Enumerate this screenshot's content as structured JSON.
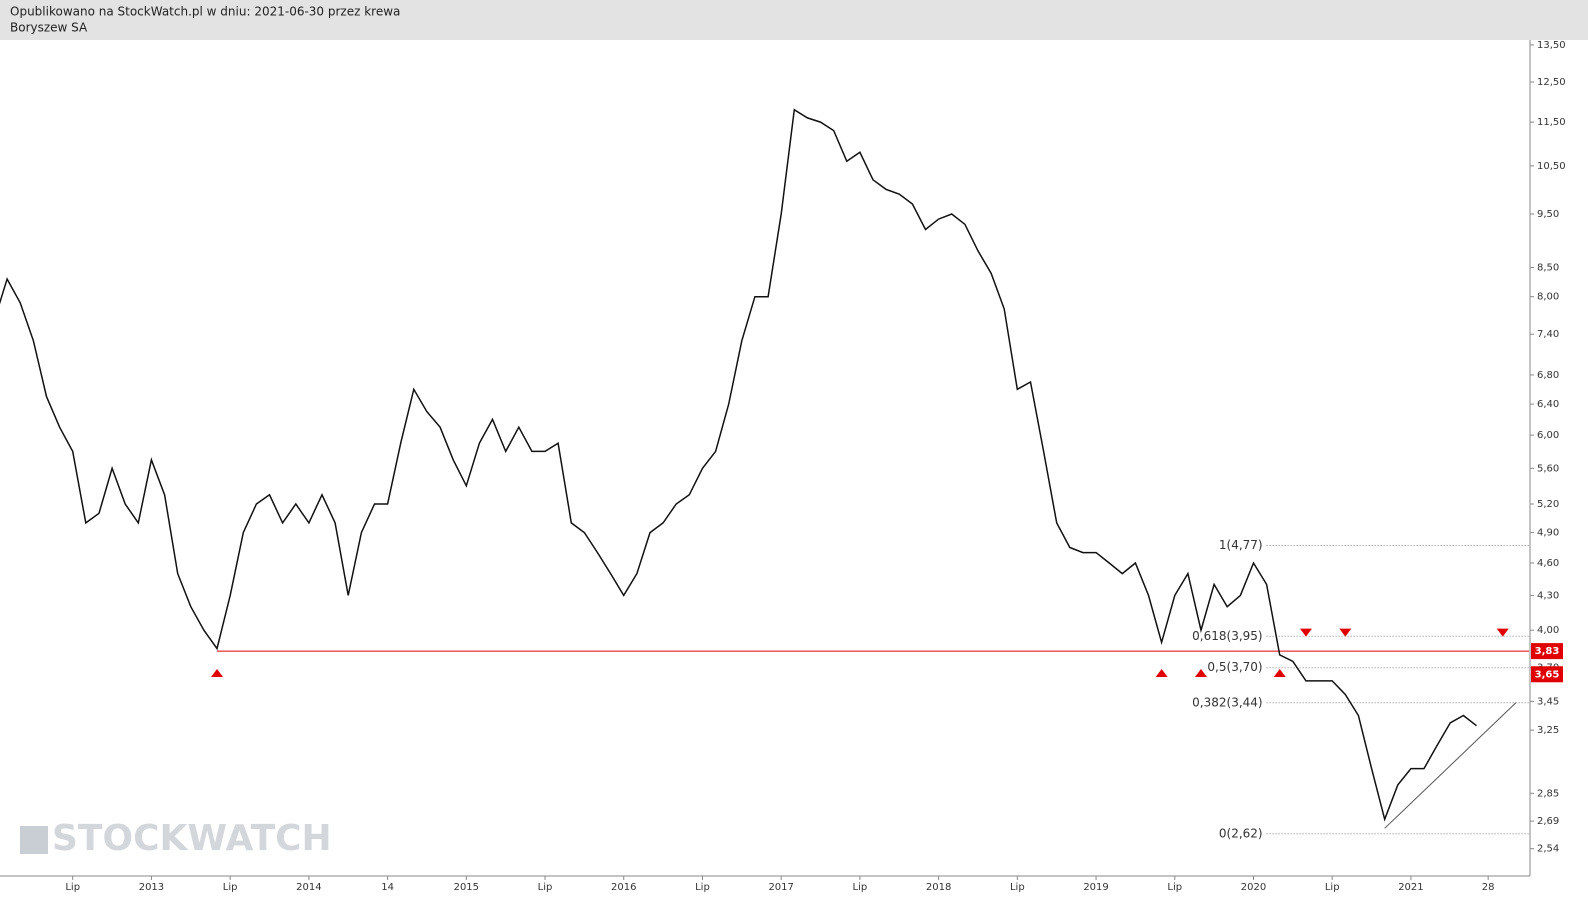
{
  "header": {
    "line1": "Opublikowano na StockWatch.pl w dniu: 2021-06-30 przez krewa",
    "line2": "Boryszew SA"
  },
  "chart_data": {
    "type": "line",
    "log_scale": true,
    "watermark": "STOCKWATCH",
    "x": [
      "2012-01",
      "2012-02",
      "2012-03",
      "2012-04",
      "2012-05",
      "2012-06",
      "2012-07",
      "2012-08",
      "2012-09",
      "2012-10",
      "2012-11",
      "2012-12",
      "2013-01",
      "2013-02",
      "2013-03",
      "2013-04",
      "2013-05",
      "2013-06",
      "2013-07",
      "2013-08",
      "2013-09",
      "2013-10",
      "2013-11",
      "2013-12",
      "2014-01",
      "2014-02",
      "2014-03",
      "2014-04",
      "2014-05",
      "2014-06",
      "2014-07",
      "2014-08",
      "2014-09",
      "2014-10",
      "2014-11",
      "2014-12",
      "2015-01",
      "2015-02",
      "2015-03",
      "2015-04",
      "2015-05",
      "2015-06",
      "2015-07",
      "2015-08",
      "2015-09",
      "2015-10",
      "2015-11",
      "2015-12",
      "2016-01",
      "2016-02",
      "2016-03",
      "2016-04",
      "2016-05",
      "2016-06",
      "2016-07",
      "2016-08",
      "2016-09",
      "2016-10",
      "2016-11",
      "2016-12",
      "2017-01",
      "2017-02",
      "2017-03",
      "2017-04",
      "2017-05",
      "2017-06",
      "2017-07",
      "2017-08",
      "2017-09",
      "2017-10",
      "2017-11",
      "2017-12",
      "2018-01",
      "2018-02",
      "2018-03",
      "2018-04",
      "2018-05",
      "2018-06",
      "2018-07",
      "2018-08",
      "2018-09",
      "2018-10",
      "2018-11",
      "2018-12",
      "2019-01",
      "2019-02",
      "2019-03",
      "2019-04",
      "2019-05",
      "2019-06",
      "2019-07",
      "2019-08",
      "2019-09",
      "2019-10",
      "2019-11",
      "2019-12",
      "2020-01",
      "2020-02",
      "2020-03",
      "2020-04",
      "2020-05",
      "2020-06",
      "2020-07",
      "2020-08",
      "2020-09",
      "2020-10",
      "2020-11",
      "2020-12",
      "2021-01",
      "2021-02",
      "2021-03",
      "2021-04",
      "2021-05",
      "2021-06"
    ],
    "series": [
      {
        "color": "#111111",
        "values": [
          7.6,
          8.3,
          7.9,
          7.3,
          6.5,
          6.1,
          5.8,
          5.0,
          5.1,
          5.6,
          5.2,
          5.0,
          5.7,
          5.3,
          4.5,
          4.2,
          4.0,
          3.85,
          4.3,
          4.9,
          5.2,
          5.3,
          5.0,
          5.2,
          5.0,
          5.3,
          5.0,
          4.3,
          4.9,
          5.2,
          5.2,
          5.9,
          6.6,
          6.3,
          6.1,
          5.7,
          5.4,
          5.9,
          6.2,
          5.8,
          6.1,
          5.8,
          5.8,
          5.9,
          5.0,
          4.9,
          4.7,
          4.5,
          4.3,
          4.5,
          4.9,
          5.0,
          5.2,
          5.3,
          5.6,
          5.8,
          6.4,
          7.3,
          8.0,
          8.0,
          9.5,
          11.8,
          11.6,
          11.5,
          11.3,
          10.6,
          10.8,
          10.2,
          10.0,
          9.9,
          9.7,
          9.2,
          9.4,
          9.5,
          9.3,
          8.8,
          8.4,
          7.8,
          6.6,
          6.7,
          5.8,
          5.0,
          4.75,
          4.7,
          4.7,
          4.6,
          4.5,
          4.6,
          4.3,
          3.9,
          4.3,
          4.5,
          4.0,
          4.4,
          4.2,
          4.3,
          4.6,
          4.4,
          3.8,
          3.75,
          3.6,
          3.6,
          3.6,
          3.5,
          3.35,
          3.0,
          2.7,
          2.9,
          3.0,
          3.0,
          3.15,
          3.3,
          3.35,
          3.28
        ]
      }
    ],
    "xlim": [
      "2012-01",
      "2021-10"
    ],
    "xticks": [
      {
        "value": "2012-07",
        "label": "Lip"
      },
      {
        "value": "2013-01",
        "label": "2013"
      },
      {
        "value": "2013-07",
        "label": "Lip"
      },
      {
        "value": "2014-01",
        "label": "2014"
      },
      {
        "value": "2014-07",
        "label": "14"
      },
      {
        "value": "2015-01",
        "label": "2015"
      },
      {
        "value": "2015-07",
        "label": "Lip"
      },
      {
        "value": "2016-01",
        "label": "2016"
      },
      {
        "value": "2016-07",
        "label": "Lip"
      },
      {
        "value": "2017-01",
        "label": "2017"
      },
      {
        "value": "2017-07",
        "label": "Lip"
      },
      {
        "value": "2018-01",
        "label": "2018"
      },
      {
        "value": "2018-07",
        "label": "Lip"
      },
      {
        "value": "2019-01",
        "label": "2019"
      },
      {
        "value": "2019-07",
        "label": "Lip"
      },
      {
        "value": "2020-01",
        "label": "2020"
      },
      {
        "value": "2020-07",
        "label": "Lip"
      },
      {
        "value": "2021-01",
        "label": "2021"
      },
      {
        "value": "2021-06-28",
        "label": "28"
      }
    ],
    "ylim": [
      2.4,
      13.64
    ],
    "yticks": [
      {
        "value": 2.54,
        "label": "2,54"
      },
      {
        "value": 2.69,
        "label": "2,69"
      },
      {
        "value": 2.85,
        "label": "2,85"
      },
      {
        "value": 3.25,
        "label": "3,25"
      },
      {
        "value": 3.45,
        "label": "3,45"
      },
      {
        "value": 3.7,
        "label": "3,70"
      },
      {
        "value": 4,
        "label": "4,00"
      },
      {
        "value": 4.3,
        "label": "4,30"
      },
      {
        "value": 4.6,
        "label": "4,60"
      },
      {
        "value": 4.9,
        "label": "4,90"
      },
      {
        "value": 5.2,
        "label": "5,20"
      },
      {
        "value": 5.6,
        "label": "5,60"
      },
      {
        "value": 6,
        "label": "6,00"
      },
      {
        "value": 6.4,
        "label": "6,40"
      },
      {
        "value": 6.8,
        "label": "6,80"
      },
      {
        "value": 7.4,
        "label": "7,40"
      },
      {
        "value": 8,
        "label": "8,00"
      },
      {
        "value": 8.5,
        "label": "8,50"
      },
      {
        "value": 9.5,
        "label": "9,50"
      },
      {
        "value": 10.5,
        "label": "10,50"
      },
      {
        "value": 11.5,
        "label": "11,50"
      },
      {
        "value": 12.5,
        "label": "12,50"
      },
      {
        "value": 13.5,
        "label": "13,50"
      }
    ],
    "support_level": {
      "value": 3.83,
      "label": "3,83",
      "start": "2013-06",
      "color": "#e00000"
    },
    "price_badge": {
      "value": 3.65,
      "label": "3,65",
      "color": "#e00000"
    },
    "fib_start": "2020-02",
    "fib_levels": [
      {
        "value": 4.77,
        "label": "1(4,77)"
      },
      {
        "value": 3.95,
        "label": "0,618(3,95)"
      },
      {
        "value": 3.7,
        "label": "0,5(3,70)"
      },
      {
        "value": 3.44,
        "label": "0,382(3,44)"
      },
      {
        "value": 2.62,
        "label": "0(2,62)"
      }
    ],
    "trend_line": {
      "x": [
        "2020-11",
        "2021-09"
      ],
      "values": [
        2.65,
        3.44
      ],
      "color": "#555555"
    },
    "up_markers": {
      "x": [
        "2013-06",
        "2019-06",
        "2019-09",
        "2020-03"
      ],
      "values": [
        3.66,
        3.66,
        3.66,
        3.66
      ]
    },
    "down_markers": {
      "x": [
        "2020-05",
        "2020-08",
        "2021-08"
      ],
      "values": [
        3.98,
        3.98,
        3.98
      ]
    },
    "marker_color": "#e00000"
  }
}
